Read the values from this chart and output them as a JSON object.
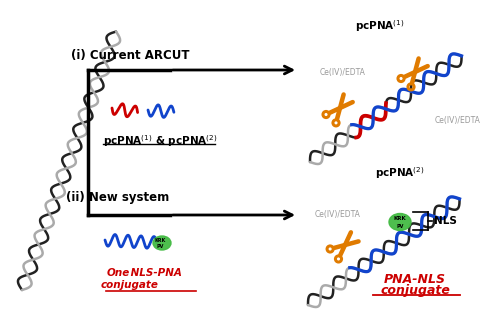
{
  "bg_color": "#ffffff",
  "label_i_text": "(i) Current ARCUT",
  "label_ii_text": "(ii) New system",
  "ce_edta": "Ce(IV)/EDTA",
  "nls_label": "NLS",
  "pcpna1_color": "#cc0000",
  "pcpna2_color": "#1144cc",
  "scissor_color": "#e07b00",
  "nls_color": "#44bb44",
  "red_color": "#cc0000",
  "gray_color": "#999999",
  "green_color": "#44bb44",
  "dna_gray": "#aaaaaa",
  "dna_black": "#222222",
  "dna_blue": "#1144cc"
}
